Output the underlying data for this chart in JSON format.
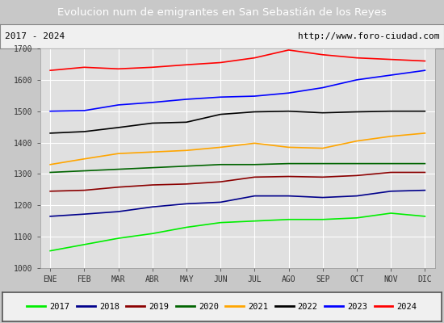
{
  "title": "Evolucion num de emigrantes en San Sebastián de los Reyes",
  "subtitle_left": "2017 - 2024",
  "subtitle_right": "http://www.foro-ciudad.com",
  "ylim": [
    1000,
    1700
  ],
  "months": [
    "ENE",
    "FEB",
    "MAR",
    "ABR",
    "MAY",
    "JUN",
    "JUL",
    "AGO",
    "SEP",
    "OCT",
    "NOV",
    "DIC"
  ],
  "series": {
    "2017": {
      "color": "#00ee00",
      "values": [
        1055,
        1075,
        1095,
        1110,
        1130,
        1145,
        1150,
        1155,
        1155,
        1160,
        1175,
        1165
      ]
    },
    "2018": {
      "color": "#00008b",
      "values": [
        1165,
        1172,
        1180,
        1195,
        1205,
        1210,
        1230,
        1230,
        1225,
        1230,
        1245,
        1248
      ]
    },
    "2019": {
      "color": "#8b0000",
      "values": [
        1245,
        1248,
        1258,
        1265,
        1268,
        1275,
        1290,
        1292,
        1290,
        1295,
        1305,
        1305
      ]
    },
    "2020": {
      "color": "#006400",
      "values": [
        1305,
        1310,
        1315,
        1320,
        1325,
        1330,
        1330,
        1333,
        1333,
        1333,
        1333,
        1333
      ]
    },
    "2021": {
      "color": "#ffa500",
      "values": [
        1330,
        1348,
        1365,
        1370,
        1375,
        1385,
        1398,
        1385,
        1382,
        1405,
        1420,
        1430
      ]
    },
    "2022": {
      "color": "#000000",
      "values": [
        1430,
        1435,
        1448,
        1462,
        1465,
        1490,
        1498,
        1500,
        1495,
        1498,
        1500,
        1500
      ]
    },
    "2023": {
      "color": "#0000ff",
      "values": [
        1500,
        1502,
        1520,
        1528,
        1538,
        1545,
        1548,
        1558,
        1575,
        1600,
        1615,
        1630
      ]
    },
    "2024": {
      "color": "#ff0000",
      "values": [
        1630,
        1640,
        1635,
        1640,
        1648,
        1655,
        1670,
        1695,
        1680,
        1670,
        1665,
        1660
      ]
    }
  },
  "fig_bg_color": "#c8c8c8",
  "plot_bg_color": "#e0e0e0",
  "title_bg_color": "#4080d0",
  "title_text_color": "#ffffff",
  "subtitle_bg_color": "#f0f0f0",
  "legend_bg_color": "#f0f0f0",
  "grid_color": "#ffffff",
  "yticks": [
    1000,
    1100,
    1200,
    1300,
    1400,
    1500,
    1600,
    1700
  ]
}
